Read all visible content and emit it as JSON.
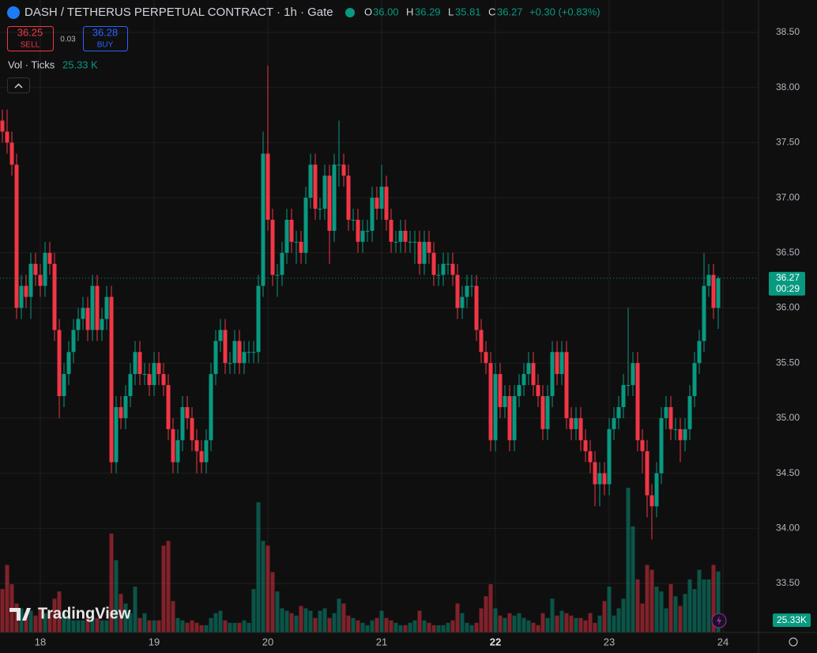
{
  "chart_data": {
    "type": "candlestick",
    "title": "DASH / TETHERUS PERPETUAL CONTRACT · 1h · Gate",
    "legend": {
      "o_key": "O",
      "o": "36.00",
      "h_key": "H",
      "h": "36.29",
      "l_key": "L",
      "l": "35.81",
      "c_key": "C",
      "c": "36.27",
      "change": "+0.30 (+0.83%)"
    },
    "trade": {
      "sell_price": "36.25",
      "sell": "SELL",
      "spread": "0.03",
      "buy_price": "36.28",
      "buy": "BUY"
    },
    "volume_legend": {
      "name": "Vol · Ticks",
      "value": "25.33 K"
    },
    "up_color": "#089981",
    "down_color": "#f23645",
    "open": [
      37.7,
      37.6,
      37.5,
      37.3,
      36.0,
      36.2,
      36.1,
      36.4,
      36.3,
      36.2,
      36.5,
      36.4,
      35.8,
      35.2,
      35.4,
      35.6,
      35.8,
      35.9,
      36.0,
      35.8,
      36.2,
      35.8,
      35.9,
      36.1,
      34.6,
      35.1,
      35.0,
      35.2,
      35.4,
      35.6,
      35.4,
      35.4,
      35.3,
      35.5,
      35.4,
      35.3,
      34.9,
      34.6,
      34.8,
      35.1,
      35.0,
      34.8,
      34.7,
      34.6,
      34.8,
      35.4,
      35.7,
      35.8,
      35.5,
      35.5,
      35.7,
      35.5,
      35.6,
      35.6,
      35.6,
      36.2,
      37.4,
      36.8,
      36.3,
      36.3,
      36.5,
      36.8,
      36.6,
      36.6,
      36.5,
      37.0,
      37.3,
      36.9,
      36.9,
      37.2,
      36.7,
      37.3,
      37.3,
      37.2,
      36.8,
      36.8,
      36.6,
      36.7,
      36.7,
      37.0,
      36.9,
      37.1,
      36.8,
      36.6,
      36.6,
      36.7,
      36.6,
      36.6,
      36.6,
      36.4,
      36.6,
      36.5,
      36.3,
      36.3,
      36.4,
      36.4,
      36.3,
      36.0,
      36.1,
      36.2,
      36.2,
      35.8,
      35.6,
      35.5,
      34.8,
      35.4,
      35.1,
      35.2,
      34.8,
      35.2,
      35.3,
      35.4,
      35.5,
      35.3,
      35.2,
      34.9,
      35.2,
      35.6,
      35.4,
      35.6,
      35.0,
      34.9,
      35.0,
      34.8,
      34.7,
      34.6,
      34.4,
      34.5,
      34.4,
      34.9,
      35.0,
      35.1,
      35.3,
      35.3,
      35.5,
      34.8,
      34.7,
      34.3,
      34.2,
      34.5,
      35.0,
      35.1,
      34.9,
      34.9,
      34.8,
      34.9,
      35.2,
      35.5,
      35.7,
      36.2,
      36.3,
      36.0
    ],
    "high": [
      37.8,
      37.8,
      37.6,
      37.4,
      36.3,
      36.3,
      36.5,
      36.5,
      36.4,
      36.6,
      36.6,
      36.5,
      35.9,
      35.5,
      35.7,
      35.9,
      36.0,
      36.1,
      36.1,
      36.3,
      36.3,
      36.0,
      36.2,
      36.2,
      35.2,
      35.2,
      35.3,
      35.5,
      35.7,
      35.7,
      35.5,
      35.5,
      35.6,
      35.6,
      35.5,
      35.4,
      35.0,
      34.9,
      35.2,
      35.2,
      35.1,
      34.9,
      34.8,
      34.9,
      35.5,
      35.8,
      35.9,
      35.9,
      35.6,
      35.8,
      35.8,
      35.7,
      35.7,
      35.7,
      36.3,
      37.6,
      38.2,
      36.9,
      36.4,
      36.6,
      36.9,
      36.9,
      36.7,
      36.7,
      37.1,
      37.4,
      37.4,
      37.0,
      37.3,
      37.3,
      37.4,
      37.7,
      37.4,
      37.3,
      36.9,
      36.9,
      36.8,
      36.8,
      37.1,
      37.1,
      37.3,
      37.2,
      36.9,
      36.7,
      36.8,
      36.8,
      36.7,
      36.7,
      36.7,
      36.7,
      36.7,
      36.6,
      36.4,
      36.5,
      36.5,
      36.5,
      36.4,
      36.2,
      36.3,
      36.3,
      36.3,
      35.9,
      35.7,
      35.6,
      35.5,
      35.5,
      35.3,
      35.3,
      35.3,
      35.4,
      35.5,
      35.6,
      35.6,
      35.4,
      35.3,
      35.3,
      35.7,
      35.7,
      35.7,
      35.7,
      35.1,
      35.1,
      35.1,
      34.9,
      34.8,
      34.7,
      34.6,
      34.6,
      35.0,
      35.1,
      35.2,
      35.4,
      36.0,
      35.6,
      35.6,
      34.9,
      34.8,
      34.4,
      34.6,
      35.1,
      35.2,
      35.2,
      35.0,
      35.0,
      35.0,
      35.3,
      35.6,
      35.8,
      36.5,
      36.4,
      36.4,
      36.29
    ],
    "low": [
      37.5,
      37.4,
      37.2,
      35.9,
      35.9,
      36.0,
      35.9,
      36.2,
      36.1,
      36.1,
      36.3,
      35.7,
      35.0,
      35.1,
      35.3,
      35.5,
      35.7,
      35.8,
      35.7,
      35.7,
      35.7,
      35.7,
      35.8,
      34.5,
      34.5,
      34.9,
      34.9,
      35.1,
      35.3,
      35.3,
      35.3,
      35.2,
      35.2,
      35.3,
      35.2,
      34.8,
      34.5,
      34.5,
      34.7,
      34.9,
      34.7,
      34.5,
      34.5,
      34.5,
      34.7,
      35.3,
      35.6,
      35.4,
      35.4,
      35.4,
      35.4,
      35.4,
      35.5,
      35.5,
      35.5,
      36.1,
      36.7,
      36.2,
      36.1,
      36.2,
      36.4,
      36.5,
      36.4,
      36.4,
      36.4,
      36.9,
      36.8,
      36.8,
      36.8,
      36.4,
      36.6,
      37.1,
      37.1,
      36.7,
      36.7,
      36.5,
      36.5,
      36.6,
      36.6,
      36.8,
      36.8,
      36.7,
      36.5,
      36.5,
      36.5,
      36.5,
      36.5,
      36.4,
      36.3,
      36.3,
      36.4,
      36.2,
      36.2,
      36.2,
      36.3,
      36.2,
      35.9,
      35.9,
      36.0,
      36.1,
      35.7,
      35.5,
      35.4,
      34.7,
      34.7,
      35.0,
      35.0,
      34.7,
      34.7,
      35.1,
      35.2,
      35.3,
      35.2,
      35.1,
      34.8,
      34.8,
      35.1,
      35.3,
      35.3,
      34.9,
      34.8,
      34.8,
      34.7,
      34.6,
      34.5,
      34.2,
      34.2,
      34.3,
      34.3,
      34.8,
      34.9,
      35.0,
      35.2,
      35.2,
      34.7,
      34.5,
      34.1,
      33.9,
      34.1,
      34.4,
      34.9,
      34.8,
      34.8,
      34.6,
      34.7,
      34.8,
      35.1,
      35.4,
      35.6,
      36.1,
      35.9,
      35.81
    ],
    "close": [
      37.6,
      37.5,
      37.3,
      36.0,
      36.2,
      36.1,
      36.4,
      36.3,
      36.2,
      36.5,
      36.4,
      35.8,
      35.2,
      35.4,
      35.6,
      35.8,
      35.9,
      36.0,
      35.8,
      36.2,
      35.8,
      35.9,
      36.1,
      34.6,
      35.1,
      35.0,
      35.2,
      35.4,
      35.6,
      35.4,
      35.4,
      35.3,
      35.5,
      35.4,
      35.3,
      34.9,
      34.6,
      34.8,
      35.1,
      35.0,
      34.8,
      34.7,
      34.6,
      34.8,
      35.4,
      35.7,
      35.8,
      35.5,
      35.5,
      35.7,
      35.5,
      35.6,
      35.6,
      35.6,
      36.2,
      37.4,
      36.8,
      36.3,
      36.3,
      36.5,
      36.8,
      36.6,
      36.6,
      36.5,
      37.0,
      37.3,
      36.9,
      36.9,
      37.2,
      36.7,
      37.3,
      37.3,
      37.2,
      36.8,
      36.8,
      36.6,
      36.7,
      36.7,
      37.0,
      36.9,
      37.1,
      36.8,
      36.6,
      36.6,
      36.7,
      36.6,
      36.6,
      36.6,
      36.4,
      36.6,
      36.5,
      36.3,
      36.3,
      36.4,
      36.4,
      36.3,
      36.0,
      36.1,
      36.2,
      36.2,
      35.8,
      35.6,
      35.5,
      34.8,
      35.4,
      35.1,
      35.2,
      34.8,
      35.2,
      35.3,
      35.4,
      35.5,
      35.3,
      35.2,
      34.9,
      35.2,
      35.6,
      35.4,
      35.6,
      35.0,
      34.9,
      35.0,
      34.8,
      34.7,
      34.6,
      34.4,
      34.5,
      34.4,
      34.9,
      35.0,
      35.1,
      35.3,
      35.3,
      35.5,
      34.8,
      34.7,
      34.3,
      34.2,
      34.5,
      35.0,
      35.1,
      34.9,
      34.9,
      34.8,
      34.9,
      35.2,
      35.5,
      35.7,
      36.2,
      36.3,
      36.0,
      36.27
    ],
    "volume": {
      "values": [
        18,
        28,
        20,
        12,
        10,
        8,
        9,
        7,
        10,
        8,
        9,
        14,
        17,
        8,
        6,
        5,
        5,
        5,
        6,
        7,
        6,
        5,
        5,
        41,
        30,
        16,
        12,
        8,
        19,
        6,
        8,
        5,
        5,
        5,
        36,
        38,
        13,
        6,
        5,
        4,
        5,
        4,
        3,
        3,
        6,
        8,
        9,
        5,
        4,
        4,
        4,
        5,
        4,
        18,
        54,
        38,
        36,
        25,
        17,
        10,
        9,
        8,
        7,
        11,
        10,
        9,
        6,
        9,
        10,
        6,
        8,
        14,
        12,
        7,
        6,
        5,
        4,
        3,
        5,
        6,
        9,
        6,
        5,
        4,
        3,
        3,
        4,
        5,
        9,
        5,
        4,
        3,
        3,
        3,
        4,
        5,
        12,
        8,
        4,
        3,
        4,
        10,
        15,
        20,
        10,
        7,
        6,
        8,
        7,
        8,
        6,
        5,
        4,
        3,
        8,
        6,
        14,
        7,
        9,
        8,
        7,
        6,
        6,
        5,
        8,
        4,
        7,
        13,
        19,
        7,
        10,
        14,
        60,
        44,
        22,
        12,
        28,
        26,
        19,
        17,
        10,
        20,
        15,
        11,
        16,
        22,
        18,
        26,
        22,
        22,
        28,
        25.33
      ],
      "last_label": "25.33K"
    },
    "ylim": [
      33.2,
      38.7
    ],
    "yticks": [
      {
        "value": 33.5,
        "label": "33.50"
      },
      {
        "value": 34,
        "label": "34.00"
      },
      {
        "value": 34.5,
        "label": "34.50"
      },
      {
        "value": 35,
        "label": "35.00"
      },
      {
        "value": 35.5,
        "label": "35.50"
      },
      {
        "value": 36,
        "label": "36.00"
      },
      {
        "value": 36.5,
        "label": "36.50"
      },
      {
        "value": 37,
        "label": "37.00"
      },
      {
        "value": 37.5,
        "label": "37.50"
      },
      {
        "value": 38,
        "label": "38.00"
      },
      {
        "value": 38.5,
        "label": "38.50"
      }
    ],
    "xticks": [
      {
        "value": 8,
        "label": "18"
      },
      {
        "value": 32,
        "label": "19"
      },
      {
        "value": 56,
        "label": "20"
      },
      {
        "value": 80,
        "label": "21"
      },
      {
        "value": 104,
        "label": "22"
      },
      {
        "value": 128,
        "label": "23"
      },
      {
        "value": 152,
        "label": "24"
      }
    ],
    "last_price": {
      "value": 36.27,
      "label": "36.27",
      "countdown": "00:29"
    },
    "watermark": "TradingView",
    "grid": true
  }
}
